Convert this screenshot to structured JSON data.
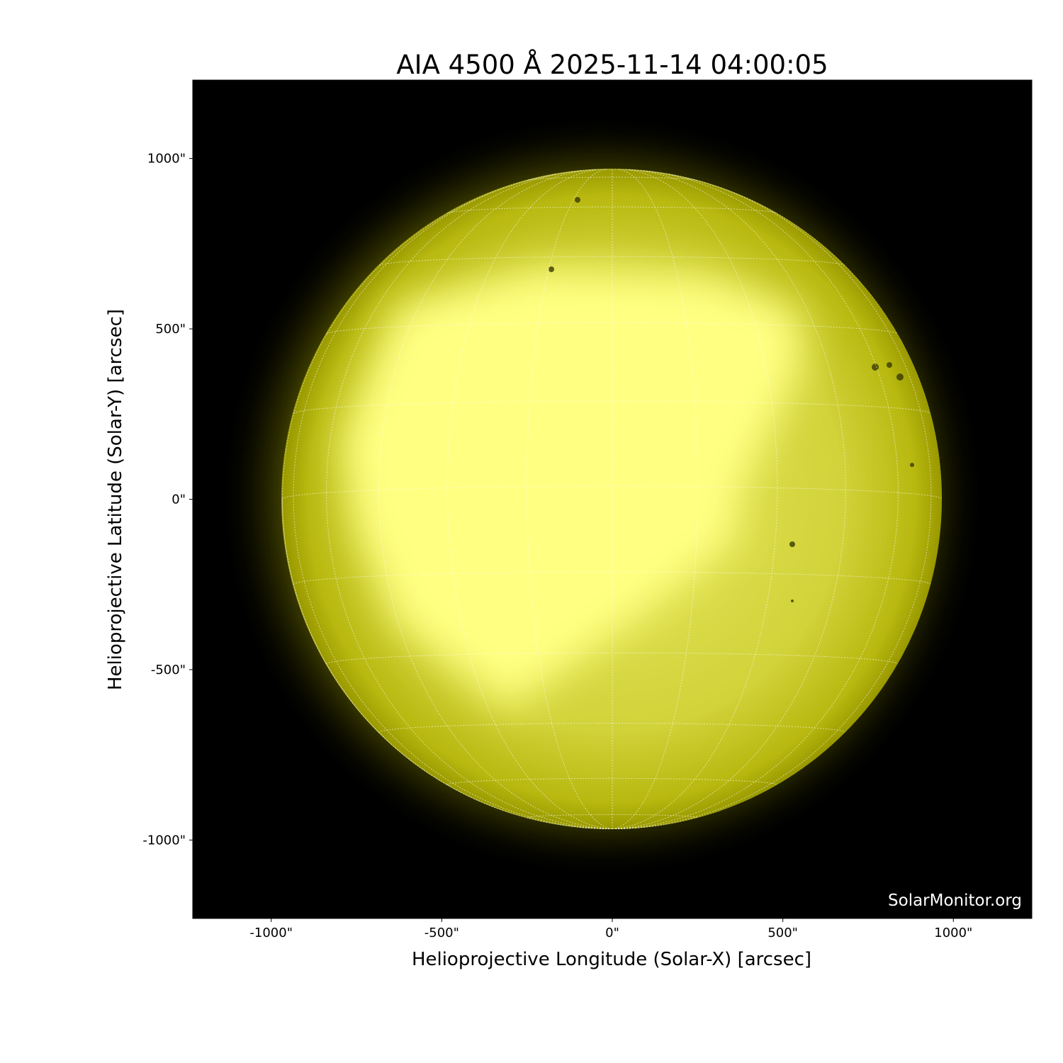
{
  "chart_data": {
    "type": "heatmap",
    "title": "AIA 4500 Å 2025-11-14 04:00:05",
    "xlabel": "Helioprojective Longitude (Solar-X) [arcsec]",
    "ylabel": "Helioprojective Latitude (Solar-Y) [arcsec]",
    "xlim": [
      -1230,
      1230
    ],
    "ylim": [
      -1230,
      1230
    ],
    "xticks": [
      -1000,
      -500,
      0,
      500,
      1000
    ],
    "yticks": [
      -1000,
      -500,
      0,
      500,
      1000
    ],
    "xtick_labels": [
      "-1000\"",
      "-500\"",
      "0\"",
      "500\"",
      "1000\""
    ],
    "ytick_labels": [
      "-1000\"",
      "-500\"",
      "0\"",
      "500\"",
      "1000\""
    ],
    "solar_radius_arcsec": 968,
    "grid": "heliographic lat/lon, 15° spacing, dotted white",
    "colormap": "sdoaia4500 (black to yellow)",
    "colors": {
      "background": "#000000",
      "disk_dark": "#a8a800",
      "disk_mid": "#d4d43a",
      "disk_bright": "#ffff80",
      "grid": "#ffffff"
    },
    "watermark": "SolarMonitor.org"
  }
}
